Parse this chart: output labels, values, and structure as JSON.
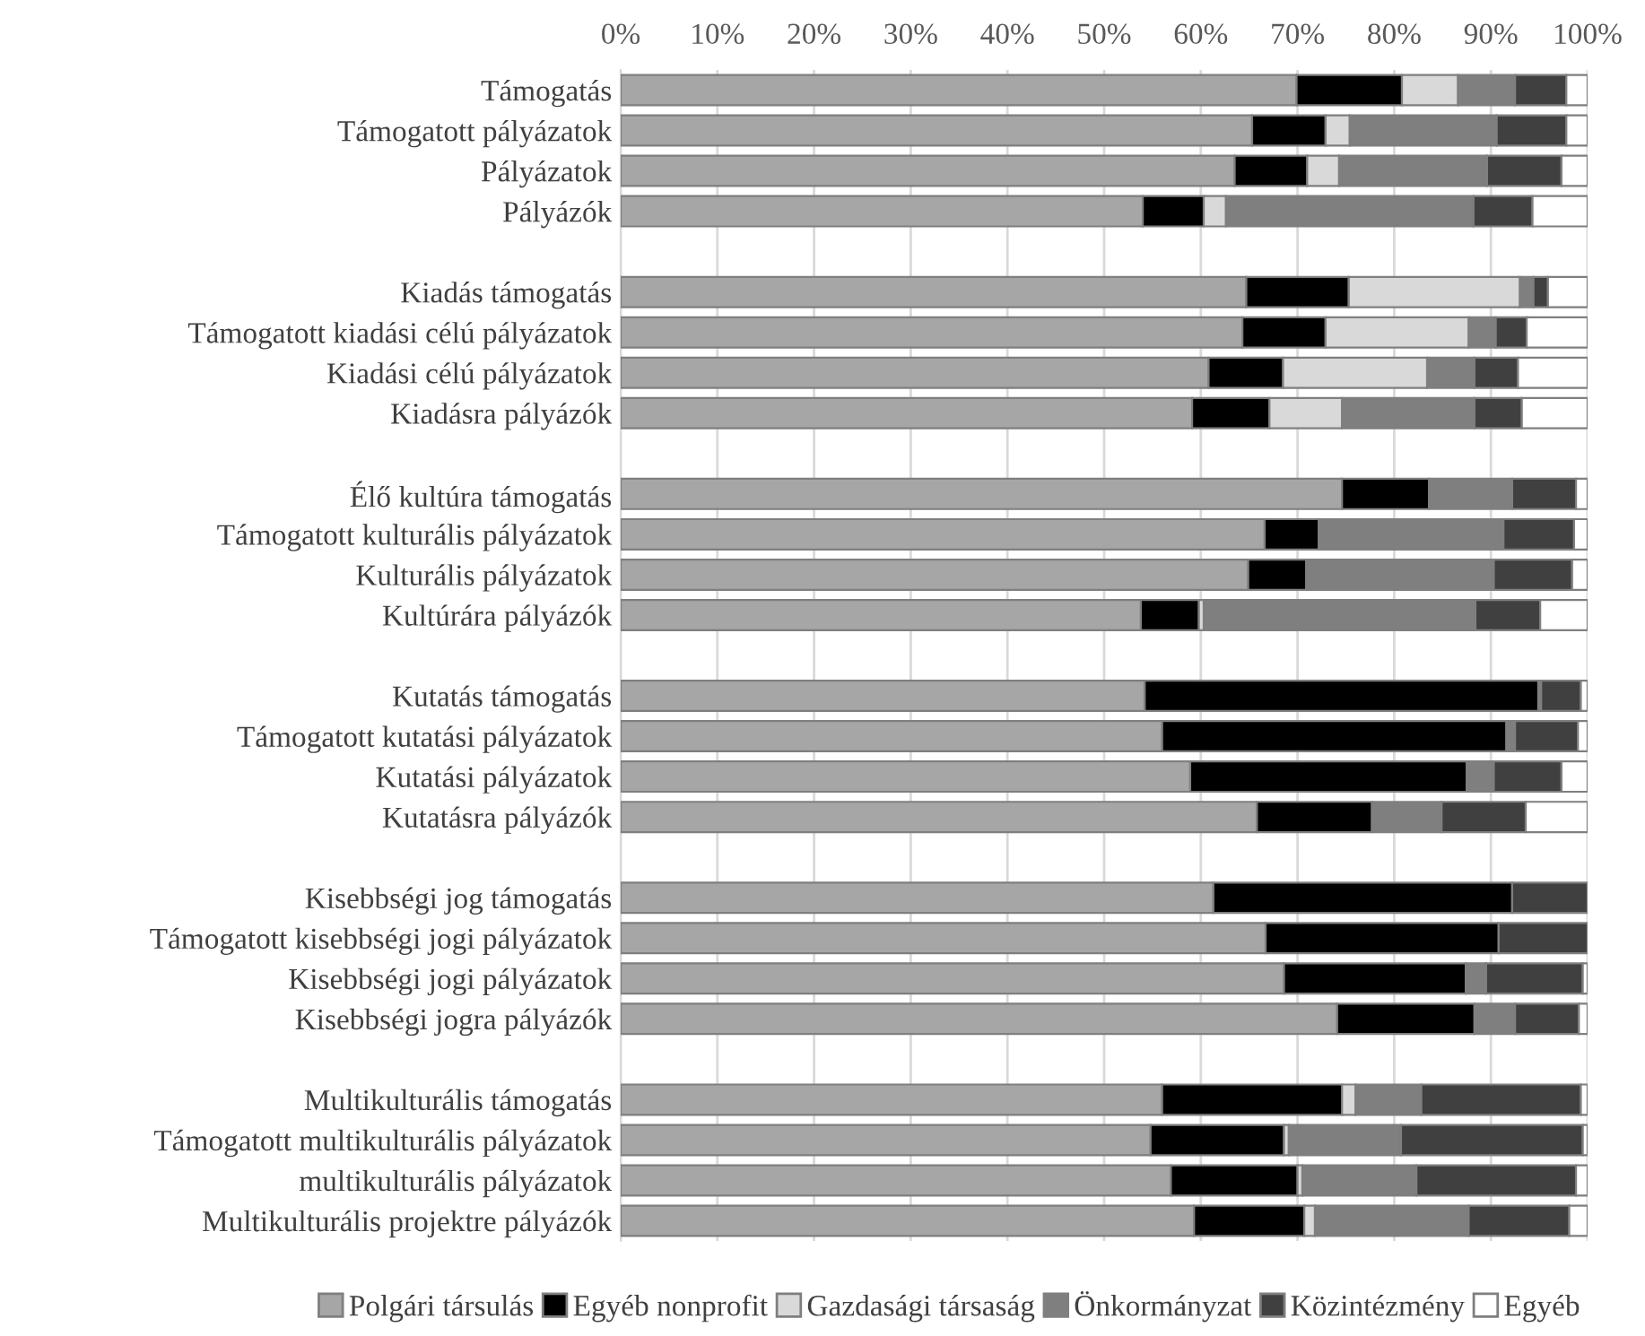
{
  "chart_data": {
    "type": "bar",
    "orientation": "horizontal",
    "stacked": true,
    "categories": [
      "Támogatás",
      "Támogatott pályázatok",
      "Pályázatok",
      "Pályázók",
      null,
      "Kiadás támogatás",
      "Támogatott kiadási célú pályázatok",
      "Kiadási célú pályázatok",
      "Kiadásra pályázók",
      null,
      "Élő kultúra támogatás",
      "Támogatott kulturális pályázatok",
      "Kulturális pályázatok",
      "Kultúrára pályázók",
      null,
      "Kutatás támogatás",
      "Támogatott kutatási pályázatok",
      "Kutatási pályázatok",
      "Kutatásra pályázók",
      null,
      "Kisebbségi jog támogatás",
      "Támogatott kisebbségi jogi pályázatok",
      "Kisebbségi jogi pályázatok",
      "Kisebbségi jogra pályázók",
      null,
      "Multikulturális támogatás",
      "Támogatott multikulturális pályázatok",
      "multikulturális pályázatok",
      "Multikulturális projektre pályázók"
    ],
    "series": [
      {
        "name": "Polgári társulás",
        "color": "#a6a6a6",
        "values": [
          69.9,
          65.3,
          63.5,
          54.0,
          null,
          64.7,
          64.3,
          60.8,
          59.1,
          null,
          74.6,
          66.6,
          64.9,
          53.8,
          null,
          54.2,
          56.0,
          58.9,
          65.8,
          null,
          61.3,
          66.7,
          68.6,
          74.1,
          null,
          56.0,
          54.8,
          56.9,
          59.3
        ]
      },
      {
        "name": "Egyéb nonprofit",
        "color": "#000000",
        "values": [
          10.9,
          7.6,
          7.5,
          6.3,
          null,
          10.6,
          8.6,
          7.7,
          8.0,
          null,
          9.0,
          5.6,
          6.0,
          6.0,
          null,
          40.7,
          35.6,
          28.6,
          11.9,
          null,
          30.9,
          24.1,
          18.8,
          14.2,
          null,
          18.6,
          13.8,
          13.1,
          11.4
        ]
      },
      {
        "name": "Gazdasági társaság",
        "color": "#d9d9d9",
        "values": [
          5.8,
          2.5,
          3.3,
          2.3,
          null,
          17.7,
          14.8,
          14.9,
          7.5,
          null,
          0,
          0,
          0,
          0.5,
          null,
          0,
          0,
          0,
          0,
          null,
          0,
          0,
          0,
          0,
          null,
          1.4,
          0.5,
          0.5,
          1.1
        ]
      },
      {
        "name": "Önkormányzat",
        "color": "#7f7f7f",
        "values": [
          5.9,
          15.2,
          15.3,
          25.6,
          null,
          1.4,
          2.8,
          4.9,
          13.7,
          null,
          8.6,
          19.1,
          19.4,
          28.1,
          null,
          0.3,
          0.9,
          2.8,
          7.2,
          null,
          0,
          0,
          2.1,
          4.2,
          null,
          6.8,
          11.6,
          11.8,
          15.9
        ]
      },
      {
        "name": "Közintézmény",
        "color": "#404040",
        "values": [
          5.3,
          7.2,
          7.7,
          6.1,
          null,
          1.5,
          3.2,
          4.5,
          4.9,
          null,
          6.6,
          7.3,
          8.1,
          6.7,
          null,
          4.1,
          6.5,
          7.0,
          8.7,
          null,
          7.8,
          9.2,
          10.0,
          6.6,
          null,
          16.5,
          18.8,
          16.5,
          10.4
        ]
      },
      {
        "name": "Egyéb",
        "color": "#ffffff",
        "values": [
          2.2,
          2.2,
          2.7,
          5.7,
          null,
          4.1,
          6.3,
          7.2,
          6.8,
          null,
          1.2,
          1.4,
          1.6,
          4.9,
          null,
          0.7,
          1.0,
          2.7,
          6.4,
          null,
          0,
          0,
          0.5,
          0.9,
          null,
          0.7,
          0.5,
          1.2,
          1.9
        ]
      }
    ],
    "xlim": [
      0,
      100
    ],
    "xticks": [
      {
        "value": 0,
        "label": "0%"
      },
      {
        "value": 10,
        "label": "10%"
      },
      {
        "value": 20,
        "label": "20%"
      },
      {
        "value": 30,
        "label": "30%"
      },
      {
        "value": 40,
        "label": "40%"
      },
      {
        "value": 50,
        "label": "50%"
      },
      {
        "value": 60,
        "label": "60%"
      },
      {
        "value": 70,
        "label": "70%"
      },
      {
        "value": 80,
        "label": "80%"
      },
      {
        "value": 90,
        "label": "90%"
      },
      {
        "value": 100,
        "label": "100%"
      }
    ],
    "grid": "x",
    "legend": "bottom"
  }
}
